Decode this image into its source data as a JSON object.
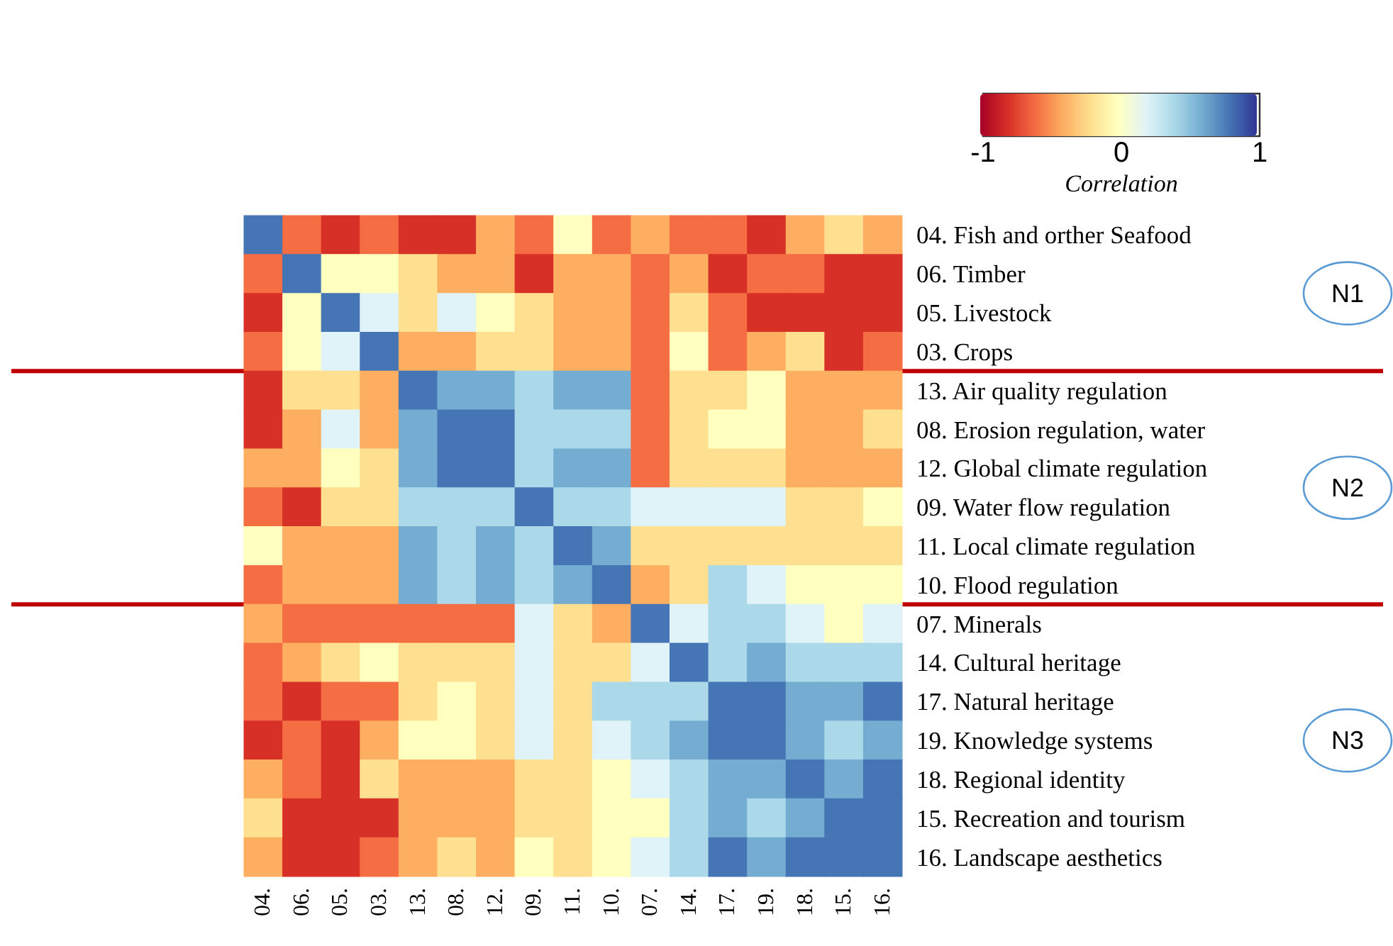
{
  "chart_data": {
    "type": "heatmap",
    "clabel": "Correlation",
    "categories": [
      "04.",
      "06.",
      "05.",
      "03.",
      "13.",
      "08.",
      "12.",
      "09.",
      "11.",
      "10.",
      "07.",
      "14.",
      "17.",
      "19.",
      "18.",
      "15.",
      "16."
    ],
    "y_categories": [
      "04. Fish and orther Seafood",
      "06. Timber",
      "05. Livestock",
      "03. Crops",
      "13. Air quality regulation",
      "08. Erosion regulation, water",
      "12. Global climate regulation",
      "09. Water flow regulation",
      "11. Local climate regulation",
      "10. Flood regulation",
      "07. Minerals",
      "14. Cultural heritage",
      "17. Natural heritage",
      "19. Knowledge systems",
      "18. Regional identity",
      "15. Recreation and tourism",
      "16. Landscape aesthetics"
    ],
    "cells": [
      [
        0.8,
        -0.6,
        -0.8,
        -0.6,
        -0.8,
        -0.8,
        -0.4,
        -0.6,
        0,
        -0.6,
        -0.4,
        -0.6,
        -0.6,
        -0.8,
        -0.4,
        -0.2,
        -0.4
      ],
      [
        -0.6,
        0.8,
        0,
        0,
        -0.2,
        -0.4,
        -0.4,
        -0.8,
        -0.4,
        -0.4,
        -0.6,
        -0.4,
        -0.8,
        -0.6,
        -0.6,
        -0.8,
        -0.8
      ],
      [
        -0.8,
        0,
        0.8,
        0.2,
        -0.2,
        0.2,
        0,
        -0.2,
        -0.4,
        -0.4,
        -0.6,
        -0.2,
        -0.6,
        -0.8,
        -0.8,
        -0.8,
        -0.8
      ],
      [
        -0.6,
        0,
        0.2,
        0.8,
        -0.4,
        -0.4,
        -0.2,
        -0.2,
        -0.4,
        -0.4,
        -0.6,
        0,
        -0.6,
        -0.4,
        -0.2,
        -0.8,
        -0.6
      ],
      [
        -0.8,
        -0.2,
        -0.2,
        -0.4,
        0.8,
        0.6,
        0.6,
        0.4,
        0.6,
        0.6,
        -0.6,
        -0.2,
        -0.2,
        0,
        -0.4,
        -0.4,
        -0.4
      ],
      [
        -0.8,
        -0.4,
        0.2,
        -0.4,
        0.6,
        0.8,
        0.8,
        0.4,
        0.4,
        0.4,
        -0.6,
        -0.2,
        0,
        0,
        -0.4,
        -0.4,
        -0.2
      ],
      [
        -0.4,
        -0.4,
        0,
        -0.2,
        0.6,
        0.8,
        0.8,
        0.4,
        0.6,
        0.6,
        -0.6,
        -0.2,
        -0.2,
        -0.2,
        -0.4,
        -0.4,
        -0.4
      ],
      [
        -0.6,
        -0.8,
        -0.2,
        -0.2,
        0.4,
        0.4,
        0.4,
        0.8,
        0.4,
        0.4,
        0.2,
        0.2,
        0.2,
        0.2,
        -0.2,
        -0.2,
        0
      ],
      [
        0,
        -0.4,
        -0.4,
        -0.4,
        0.6,
        0.4,
        0.6,
        0.4,
        0.8,
        0.6,
        -0.2,
        -0.2,
        -0.2,
        -0.2,
        -0.2,
        -0.2,
        -0.2
      ],
      [
        -0.6,
        -0.4,
        -0.4,
        -0.4,
        0.6,
        0.4,
        0.6,
        0.4,
        0.6,
        0.8,
        -0.4,
        -0.2,
        0.4,
        0.2,
        0,
        0,
        0
      ],
      [
        -0.4,
        -0.6,
        -0.6,
        -0.6,
        -0.6,
        -0.6,
        -0.6,
        0.2,
        -0.2,
        -0.4,
        0.8,
        0.2,
        0.4,
        0.4,
        0.2,
        0,
        0.2
      ],
      [
        -0.6,
        -0.4,
        -0.2,
        0,
        -0.2,
        -0.2,
        -0.2,
        0.2,
        -0.2,
        -0.2,
        0.2,
        0.8,
        0.4,
        0.6,
        0.4,
        0.4,
        0.4
      ],
      [
        -0.6,
        -0.8,
        -0.6,
        -0.6,
        -0.2,
        0,
        -0.2,
        0.2,
        -0.2,
        0.4,
        0.4,
        0.4,
        0.8,
        0.8,
        0.6,
        0.6,
        0.8
      ],
      [
        -0.8,
        -0.6,
        -0.8,
        -0.4,
        0,
        0,
        -0.2,
        0.2,
        -0.2,
        0.2,
        0.4,
        0.6,
        0.8,
        0.8,
        0.6,
        0.4,
        0.6
      ],
      [
        -0.4,
        -0.6,
        -0.8,
        -0.2,
        -0.4,
        -0.4,
        -0.4,
        -0.2,
        -0.2,
        0,
        0.2,
        0.4,
        0.6,
        0.6,
        0.8,
        0.6,
        0.8
      ],
      [
        -0.2,
        -0.8,
        -0.8,
        -0.8,
        -0.4,
        -0.4,
        -0.4,
        -0.2,
        -0.2,
        0,
        0,
        0.4,
        0.6,
        0.4,
        0.6,
        0.8,
        0.8
      ],
      [
        -0.4,
        -0.8,
        -0.8,
        -0.6,
        -0.4,
        -0.2,
        -0.4,
        0,
        -0.2,
        0,
        0.2,
        0.4,
        0.8,
        0.6,
        0.8,
        0.8,
        0.8
      ]
    ],
    "clim": [
      -1,
      1
    ],
    "cticks": [
      -1,
      0,
      1
    ],
    "ref_lines": [
      {
        "axis": "y",
        "value": "03. Crops",
        "color": "#c00000"
      },
      {
        "axis": "y",
        "value": "10. Flood regulation",
        "color": "#c00000"
      }
    ],
    "annotations": [
      "N1",
      "N2",
      "N3"
    ]
  }
}
